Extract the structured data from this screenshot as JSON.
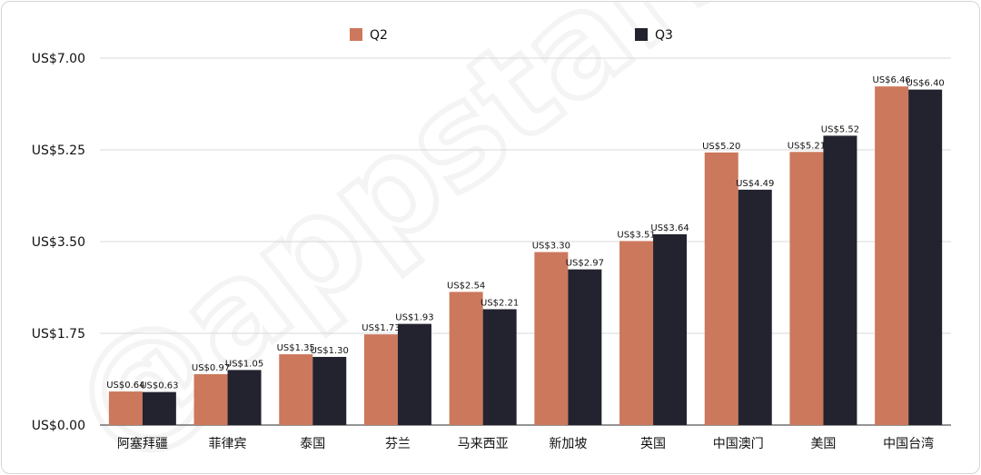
{
  "chart_data": {
    "type": "bar",
    "categories": [
      "阿塞拜疆",
      "菲律宾",
      "泰国",
      "芬兰",
      "马来西亚",
      "新加坡",
      "英国",
      "中国澳门",
      "美国",
      "中国台湾"
    ],
    "series": [
      {
        "name": "Q2",
        "color": "#cc785c",
        "values": [
          0.64,
          0.97,
          1.35,
          1.73,
          2.54,
          3.3,
          3.51,
          5.2,
          5.21,
          6.46
        ]
      },
      {
        "name": "Q3",
        "color": "#23232f",
        "values": [
          0.63,
          1.05,
          1.3,
          1.93,
          2.21,
          2.97,
          3.64,
          4.49,
          5.52,
          6.4
        ]
      }
    ],
    "data_labels": [
      [
        "US$0.64",
        "US$0.97",
        "US$1.35",
        "US$1.73",
        "US$2.54",
        "US$3.30",
        "US$3.51",
        "US$5.20",
        "US$5.21",
        "US$6.46"
      ],
      [
        "US$0.63",
        "US$1.05",
        "US$1.30",
        "US$1.93",
        "US$2.21",
        "US$2.97",
        "US$3.64",
        "US$4.49",
        "US$5.52",
        "US$6.40"
      ]
    ],
    "yticks": [
      0,
      1.75,
      3.5,
      5.25,
      7
    ],
    "ytick_labels": [
      "US$0.00",
      "US$1.75",
      "US$3.50",
      "US$5.25",
      "US$7.00"
    ],
    "ylim": [
      0,
      7
    ],
    "grid": true,
    "legend_position": "top-center",
    "title": "",
    "xlabel": "",
    "ylabel": ""
  },
  "watermark": "@appstars"
}
